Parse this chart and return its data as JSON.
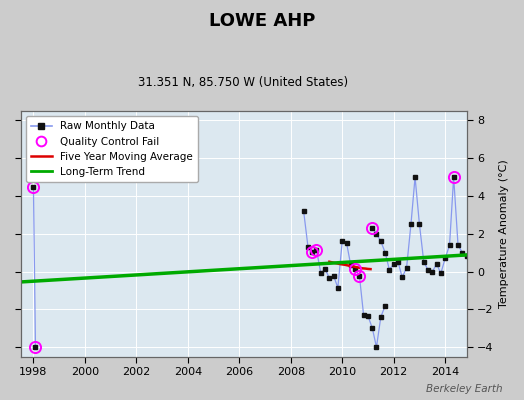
{
  "title": "LOWE AHP",
  "subtitle": "31.351 N, 85.750 W (United States)",
  "ylabel": "Temperature Anomaly (°C)",
  "watermark": "Berkeley Earth",
  "xlim": [
    1997.5,
    2014.83
  ],
  "ylim": [
    -4.5,
    8.5
  ],
  "yticks": [
    -4,
    -2,
    0,
    2,
    4,
    6,
    8
  ],
  "xticks": [
    1998,
    2000,
    2002,
    2004,
    2006,
    2008,
    2010,
    2012,
    2014
  ],
  "fig_bg": "#cccccc",
  "plot_bg": "#dce8f0",
  "grid_color": "#ffffff",
  "raw_segments": [
    [
      [
        1998.0,
        4.5
      ],
      [
        1998.08,
        -4.0
      ]
    ],
    [
      [
        2008.5,
        3.2
      ],
      [
        2008.67,
        1.3
      ],
      [
        2008.83,
        1.05
      ],
      [
        2009.0,
        1.15
      ],
      [
        2009.17,
        -0.1
      ],
      [
        2009.33,
        0.15
      ],
      [
        2009.5,
        -0.35
      ],
      [
        2009.67,
        -0.25
      ],
      [
        2009.83,
        -0.85
      ],
      [
        2010.0,
        1.6
      ],
      [
        2010.17,
        1.5
      ],
      [
        2010.33,
        0.35
      ],
      [
        2010.5,
        0.15
      ],
      [
        2010.67,
        -0.25
      ],
      [
        2010.83,
        -2.3
      ],
      [
        2011.0,
        -2.35
      ],
      [
        2011.17,
        -3.0
      ],
      [
        2011.33,
        -4.0
      ],
      [
        2011.5,
        -2.4
      ],
      [
        2011.67,
        -1.8
      ]
    ],
    [
      [
        2011.17,
        2.3
      ],
      [
        2011.33,
        2.0
      ],
      [
        2011.5,
        1.6
      ],
      [
        2011.67,
        1.0
      ],
      [
        2011.83,
        0.1
      ],
      [
        2012.0,
        0.4
      ],
      [
        2012.17,
        0.5
      ],
      [
        2012.33,
        -0.3
      ],
      [
        2012.5,
        0.2
      ],
      [
        2012.67,
        2.5
      ],
      [
        2012.83,
        5.0
      ],
      [
        2013.0,
        2.5
      ],
      [
        2013.17,
        0.5
      ],
      [
        2013.33,
        0.1
      ],
      [
        2013.5,
        0.0
      ],
      [
        2013.67,
        0.4
      ],
      [
        2013.83,
        -0.1
      ],
      [
        2014.0,
        0.7
      ],
      [
        2014.17,
        1.4
      ],
      [
        2014.33,
        5.0
      ],
      [
        2014.5,
        1.4
      ],
      [
        2014.67,
        1.0
      ],
      [
        2014.83,
        0.8
      ]
    ]
  ],
  "all_points": [
    [
      1998.0,
      4.5
    ],
    [
      1998.08,
      -4.0
    ],
    [
      2008.5,
      3.2
    ],
    [
      2008.67,
      1.3
    ],
    [
      2008.83,
      1.05
    ],
    [
      2009.0,
      1.15
    ],
    [
      2009.17,
      -0.1
    ],
    [
      2009.33,
      0.15
    ],
    [
      2009.5,
      -0.35
    ],
    [
      2009.67,
      -0.25
    ],
    [
      2009.83,
      -0.85
    ],
    [
      2010.0,
      1.6
    ],
    [
      2010.17,
      1.5
    ],
    [
      2010.33,
      0.35
    ],
    [
      2010.5,
      0.15
    ],
    [
      2010.67,
      -0.25
    ],
    [
      2010.83,
      -2.3
    ],
    [
      2011.0,
      -2.35
    ],
    [
      2011.17,
      -3.0
    ],
    [
      2011.33,
      -4.0
    ],
    [
      2011.5,
      -2.4
    ],
    [
      2011.67,
      -1.8
    ],
    [
      2011.17,
      2.3
    ],
    [
      2011.33,
      2.0
    ],
    [
      2011.5,
      1.6
    ],
    [
      2011.67,
      1.0
    ],
    [
      2011.83,
      0.1
    ],
    [
      2012.0,
      0.4
    ],
    [
      2012.17,
      0.5
    ],
    [
      2012.33,
      -0.3
    ],
    [
      2012.5,
      0.2
    ],
    [
      2012.67,
      2.5
    ],
    [
      2012.83,
      5.0
    ],
    [
      2013.0,
      2.5
    ],
    [
      2013.17,
      0.5
    ],
    [
      2013.33,
      0.1
    ],
    [
      2013.5,
      0.0
    ],
    [
      2013.67,
      0.4
    ],
    [
      2013.83,
      -0.1
    ],
    [
      2014.0,
      0.7
    ],
    [
      2014.17,
      1.4
    ],
    [
      2014.33,
      5.0
    ],
    [
      2014.5,
      1.4
    ],
    [
      2014.67,
      1.0
    ],
    [
      2014.83,
      0.8
    ]
  ],
  "qc_fail": [
    [
      1998.0,
      4.5
    ],
    [
      1998.08,
      -4.0
    ],
    [
      2008.83,
      1.05
    ],
    [
      2009.0,
      1.15
    ],
    [
      2010.5,
      0.15
    ],
    [
      2010.67,
      -0.25
    ],
    [
      2011.17,
      2.3
    ],
    [
      2014.33,
      5.0
    ]
  ],
  "moving_avg": [
    [
      2009.5,
      0.52
    ],
    [
      2009.6,
      0.49
    ],
    [
      2009.7,
      0.46
    ],
    [
      2009.8,
      0.43
    ],
    [
      2009.9,
      0.4
    ],
    [
      2010.0,
      0.38
    ],
    [
      2010.1,
      0.36
    ],
    [
      2010.2,
      0.33
    ],
    [
      2010.3,
      0.3
    ],
    [
      2010.4,
      0.28
    ],
    [
      2010.5,
      0.25
    ],
    [
      2010.6,
      0.22
    ],
    [
      2010.7,
      0.19
    ],
    [
      2010.8,
      0.17
    ],
    [
      2010.9,
      0.16
    ],
    [
      2011.0,
      0.14
    ],
    [
      2011.1,
      0.13
    ]
  ],
  "trend_x": [
    1997.5,
    2014.83
  ],
  "trend_y": [
    -0.55,
    0.88
  ],
  "raw_line_color": "#8899ee",
  "marker_color": "#111111",
  "qc_color": "#ff00ff",
  "moving_avg_color": "#dd0000",
  "trend_color": "#00aa00"
}
